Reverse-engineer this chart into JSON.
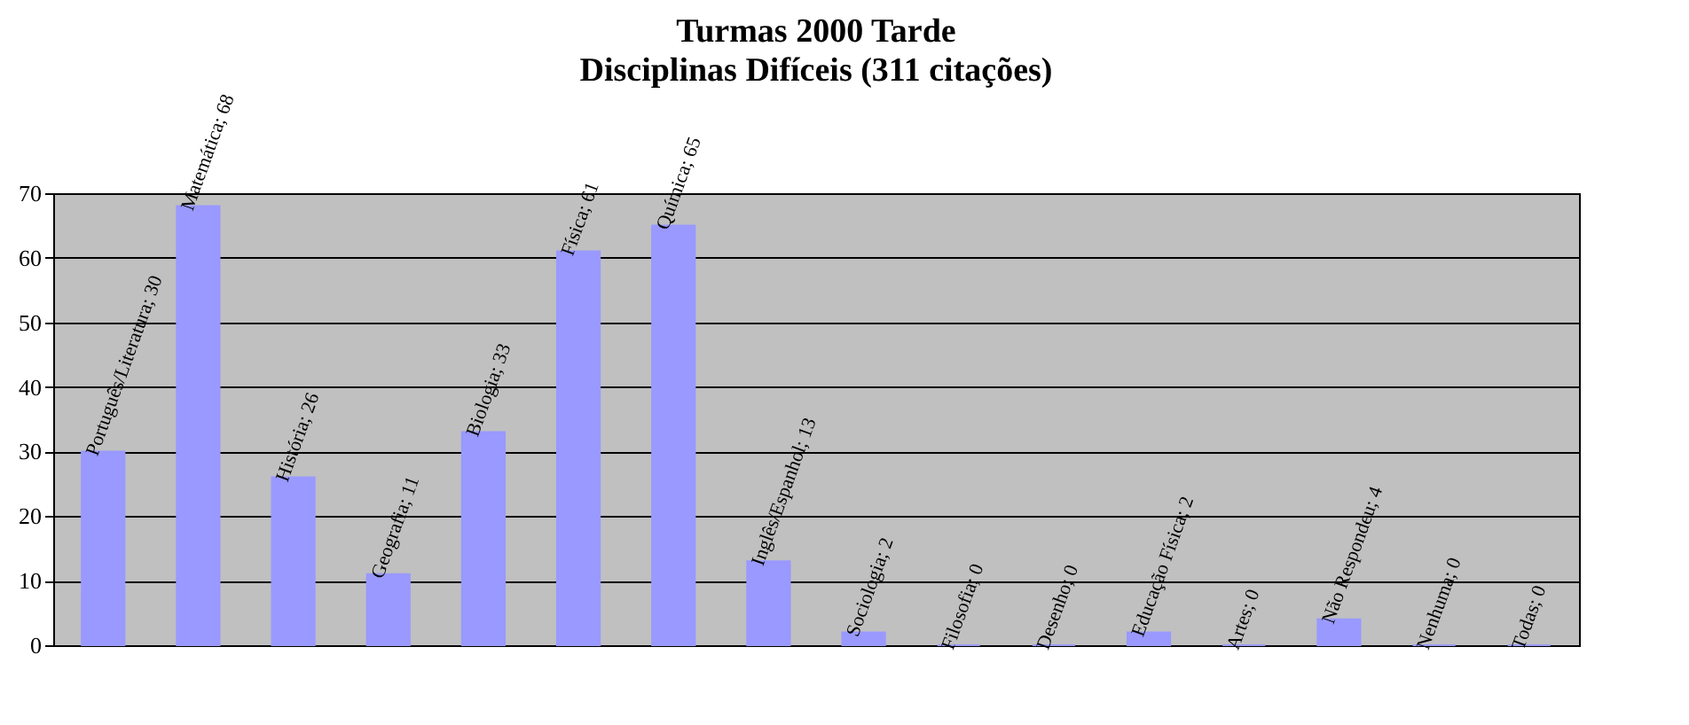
{
  "chart_data": {
    "type": "bar",
    "title": "Turmas 2000 Tarde",
    "subtitle": "Disciplinas Difíceis (311 citações)",
    "categories": [
      null,
      null,
      null,
      null,
      null,
      null,
      null,
      null,
      null,
      null,
      null,
      null,
      null,
      null,
      null,
      null
    ],
    "values": [
      30,
      68,
      26,
      11,
      33,
      61,
      65,
      13,
      2,
      0,
      0,
      2,
      0,
      4,
      0,
      0
    ],
    "value_labels": [
      "Português/Literatura; 30",
      "Matemática; 68",
      "História; 26",
      "Geografia; 11",
      "Biologia; 33",
      "Física; 61",
      "Química; 65",
      "Inglês/Espanhol; 13",
      "Sociologia; 2",
      "Filosofia; 0",
      "Desenho; 0",
      "Educação Física; 2",
      "Artes; 0",
      "Não Respondeu; 4",
      "Nenhuma; 0",
      "Todas; 0"
    ],
    "color": "#9999ff",
    "ylim": [
      0,
      70
    ],
    "yticks": [
      0,
      10,
      20,
      30,
      40,
      50,
      60,
      70
    ],
    "grid": "y",
    "tick_labels": "y"
  }
}
